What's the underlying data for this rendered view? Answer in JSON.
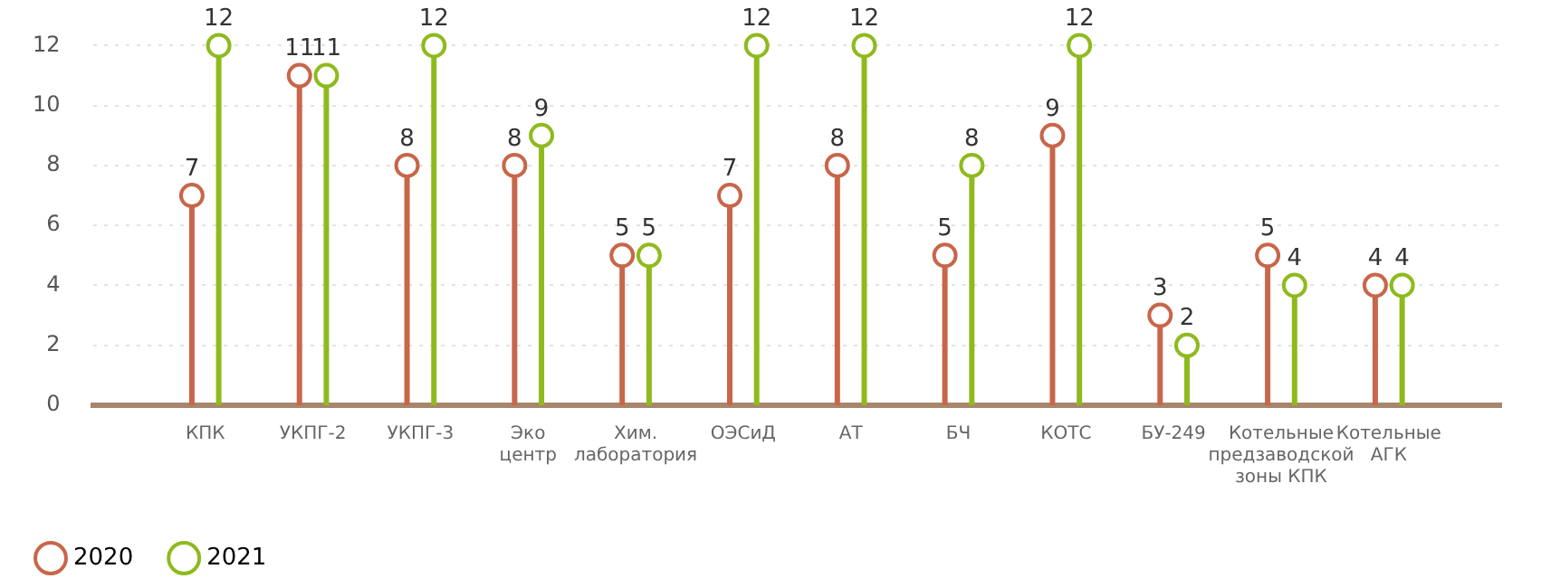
{
  "chart_data": {
    "type": "lollipop",
    "categories": [
      "КПК",
      "УКПГ-2",
      "УКПГ-3",
      "Эко центр",
      "Хим. лаборатория",
      "ОЭСиД",
      "АТ",
      "БЧ",
      "КОТС",
      "БУ-249",
      "Котельные предзаводской зоны КПК",
      "Котельные АГК"
    ],
    "series": [
      {
        "name": "2020",
        "color": "#c8664a",
        "values": [
          7,
          11,
          8,
          8,
          5,
          7,
          8,
          5,
          9,
          3,
          5,
          4
        ]
      },
      {
        "name": "2021",
        "color": "#8fba1e",
        "values": [
          12,
          11,
          12,
          9,
          5,
          12,
          12,
          8,
          12,
          2,
          4,
          4
        ]
      }
    ],
    "ylim": [
      0,
      12
    ],
    "yticks": [
      0,
      2,
      4,
      6,
      8,
      10,
      12
    ],
    "grid": "y",
    "legend": "bottom left",
    "marker": "circle",
    "data_labels": true
  }
}
